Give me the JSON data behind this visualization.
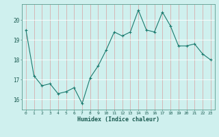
{
  "x": [
    0,
    1,
    2,
    3,
    4,
    5,
    6,
    7,
    8,
    9,
    10,
    11,
    12,
    13,
    14,
    15,
    16,
    17,
    18,
    19,
    20,
    21,
    22,
    23
  ],
  "y": [
    19.5,
    17.2,
    16.7,
    16.8,
    16.3,
    16.4,
    16.6,
    15.8,
    17.1,
    17.7,
    18.5,
    19.4,
    19.2,
    19.4,
    20.5,
    19.5,
    19.4,
    20.4,
    19.7,
    18.7,
    18.7,
    18.8,
    18.3,
    18.0
  ],
  "xlabel": "Humidex (Indice chaleur)",
  "xlim": [
    -0.5,
    23.5
  ],
  "ylim": [
    15.5,
    20.8
  ],
  "yticks": [
    16,
    17,
    18,
    19,
    20
  ],
  "xticks": [
    0,
    1,
    2,
    3,
    4,
    5,
    6,
    7,
    8,
    9,
    10,
    11,
    12,
    13,
    14,
    15,
    16,
    17,
    18,
    19,
    20,
    21,
    22,
    23
  ],
  "line_color": "#1a7a6e",
  "marker_color": "#1a7a6e",
  "bg_color": "#cff0ee",
  "grid_color": "#b8ddd9",
  "axes_color": "#5a9a8e",
  "tick_label_color": "#1a5a50",
  "xlabel_color": "#1a5a50"
}
